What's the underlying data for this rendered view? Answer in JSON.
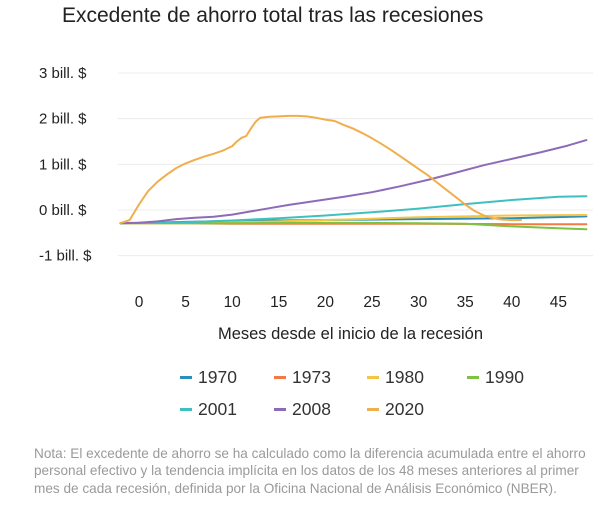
{
  "chart_data": {
    "type": "line",
    "title": "Excedente de ahorro total tras las recesiones",
    "xlabel": "Meses desde el inicio de la recesión",
    "ylabel": "",
    "xlim": [
      -2,
      49
    ],
    "ylim": [
      -1.15,
      3.3
    ],
    "x_ticks": [
      0,
      5,
      10,
      15,
      20,
      25,
      30,
      35,
      40,
      45
    ],
    "x_tick_labels": [
      "0",
      "5",
      "10",
      "15",
      "20",
      "25",
      "30",
      "35",
      "40",
      "45"
    ],
    "y_ticks": [
      3,
      2,
      1,
      0,
      -1
    ],
    "y_tick_labels": [
      "3 bill. $",
      "2 bill. $",
      "1 bill. $",
      "0 bill. $",
      "-1 bill. $"
    ],
    "grid": true,
    "legend_position": "bottom",
    "series": [
      {
        "name": "1970",
        "color": "#2a8fbd",
        "points": [
          [
            -2,
            -0.29
          ],
          [
            5,
            -0.26
          ],
          [
            10,
            -0.24
          ],
          [
            20,
            -0.22
          ],
          [
            30,
            -0.2
          ],
          [
            40,
            -0.18
          ],
          [
            48,
            -0.14
          ]
        ]
      },
      {
        "name": "1973",
        "color": "#f37a45",
        "points": [
          [
            -2,
            -0.29
          ],
          [
            5,
            -0.29
          ],
          [
            10,
            -0.3
          ],
          [
            20,
            -0.3
          ],
          [
            30,
            -0.3
          ],
          [
            40,
            -0.31
          ],
          [
            48,
            -0.31
          ]
        ]
      },
      {
        "name": "1980",
        "color": "#f4c542",
        "points": [
          [
            -2,
            -0.29
          ],
          [
            5,
            -0.29
          ],
          [
            10,
            -0.27
          ],
          [
            15,
            -0.25
          ],
          [
            20,
            -0.22
          ],
          [
            25,
            -0.19
          ],
          [
            30,
            -0.16
          ],
          [
            35,
            -0.14
          ],
          [
            40,
            -0.12
          ],
          [
            48,
            -0.11
          ]
        ]
      },
      {
        "name": "1990",
        "color": "#7dc242",
        "points": [
          [
            -2,
            -0.29
          ],
          [
            5,
            -0.29
          ],
          [
            10,
            -0.29
          ],
          [
            20,
            -0.28
          ],
          [
            30,
            -0.29
          ],
          [
            35,
            -0.3
          ],
          [
            40,
            -0.36
          ],
          [
            45,
            -0.4
          ],
          [
            48,
            -0.42
          ]
        ]
      },
      {
        "name": "2001",
        "color": "#3fc0c0",
        "points": [
          [
            -2,
            -0.29
          ],
          [
            5,
            -0.27
          ],
          [
            10,
            -0.23
          ],
          [
            15,
            -0.18
          ],
          [
            20,
            -0.12
          ],
          [
            25,
            -0.05
          ],
          [
            30,
            0.03
          ],
          [
            35,
            0.13
          ],
          [
            40,
            0.22
          ],
          [
            45,
            0.29
          ],
          [
            48,
            0.3
          ]
        ]
      },
      {
        "name": "2008",
        "color": "#8e6bb8",
        "points": [
          [
            -2,
            -0.29
          ],
          [
            0,
            -0.28
          ],
          [
            2,
            -0.25
          ],
          [
            4,
            -0.2
          ],
          [
            6,
            -0.17
          ],
          [
            8,
            -0.15
          ],
          [
            10,
            -0.1
          ],
          [
            12,
            -0.03
          ],
          [
            14,
            0.04
          ],
          [
            16,
            0.11
          ],
          [
            18,
            0.17
          ],
          [
            20,
            0.23
          ],
          [
            22,
            0.29
          ],
          [
            25,
            0.39
          ],
          [
            28,
            0.52
          ],
          [
            31,
            0.66
          ],
          [
            34,
            0.82
          ],
          [
            37,
            0.98
          ],
          [
            40,
            1.12
          ],
          [
            43,
            1.26
          ],
          [
            46,
            1.41
          ],
          [
            48,
            1.53
          ]
        ]
      },
      {
        "name": "2020",
        "color": "#f0ae4c",
        "points": [
          [
            -2,
            -0.29
          ],
          [
            -1,
            -0.22
          ],
          [
            0,
            0.12
          ],
          [
            1,
            0.42
          ],
          [
            2,
            0.62
          ],
          [
            3,
            0.78
          ],
          [
            4,
            0.92
          ],
          [
            5,
            1.02
          ],
          [
            6,
            1.1
          ],
          [
            7,
            1.17
          ],
          [
            8,
            1.23
          ],
          [
            9,
            1.3
          ],
          [
            10,
            1.4
          ],
          [
            10.5,
            1.5
          ],
          [
            11,
            1.58
          ],
          [
            11.5,
            1.62
          ],
          [
            12,
            1.78
          ],
          [
            12.5,
            1.93
          ],
          [
            13,
            2.02
          ],
          [
            14,
            2.04
          ],
          [
            15,
            2.05
          ],
          [
            16,
            2.06
          ],
          [
            17,
            2.06
          ],
          [
            18,
            2.05
          ],
          [
            19,
            2.02
          ],
          [
            20,
            1.98
          ],
          [
            21,
            1.95
          ],
          [
            22,
            1.86
          ],
          [
            23,
            1.78
          ],
          [
            24,
            1.68
          ],
          [
            25,
            1.57
          ],
          [
            26,
            1.45
          ],
          [
            27,
            1.32
          ],
          [
            28,
            1.18
          ],
          [
            29,
            1.04
          ],
          [
            30,
            0.9
          ],
          [
            31,
            0.76
          ],
          [
            32,
            0.6
          ],
          [
            33,
            0.44
          ],
          [
            34,
            0.28
          ],
          [
            35,
            0.12
          ],
          [
            36,
            -0.02
          ],
          [
            37,
            -0.12
          ],
          [
            38,
            -0.18
          ],
          [
            39,
            -0.21
          ],
          [
            40,
            -0.22
          ],
          [
            41,
            -0.22
          ]
        ]
      }
    ]
  },
  "note": "Nota: El excedente de ahorro se ha calculado como la diferencia acumulada entre el ahorro personal efectivo y la tendencia implícita en los datos de los 48 meses anteriores al primer mes de cada recesión, definida por la Oficina Nacional de Análisis Económico (NBER)."
}
